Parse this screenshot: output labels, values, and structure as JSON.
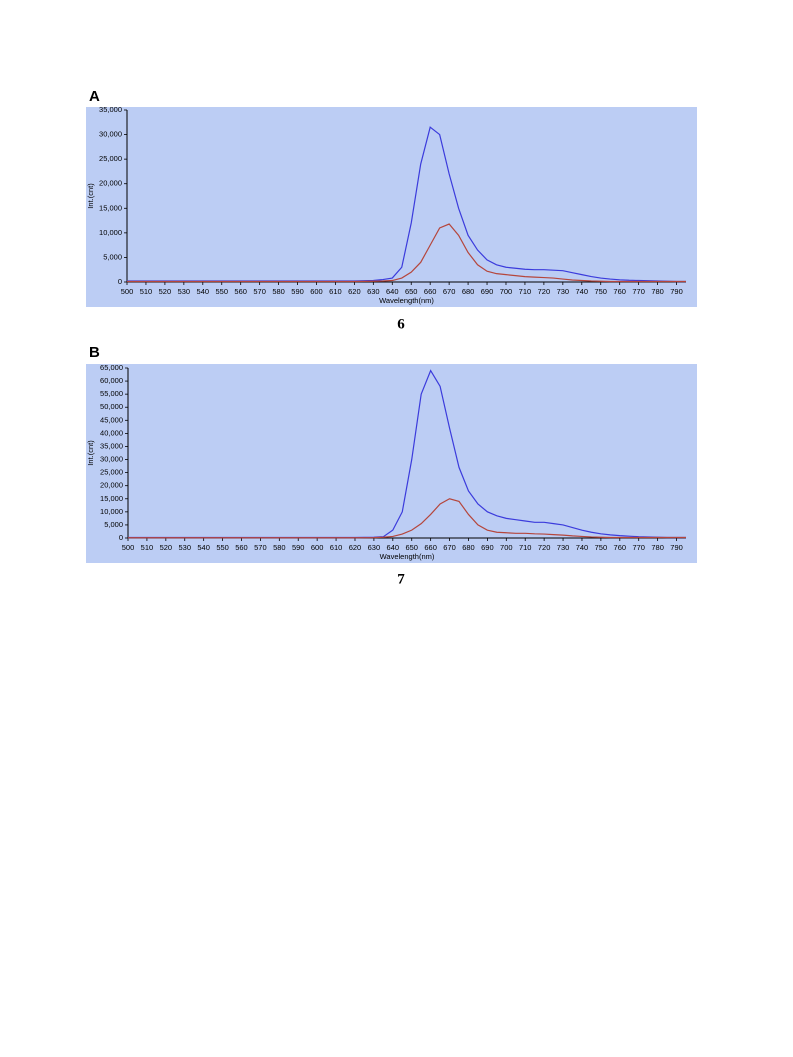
{
  "chart_data": [
    {
      "type": "line",
      "panel": "A",
      "caption": "6",
      "x_label": "Wavelength(nm)",
      "y_label": "Int.(cnt)",
      "x": [
        500,
        510,
        520,
        530,
        540,
        550,
        560,
        570,
        580,
        590,
        600,
        610,
        620,
        630,
        635,
        640,
        645,
        650,
        655,
        660,
        665,
        670,
        675,
        680,
        685,
        690,
        695,
        700,
        705,
        710,
        715,
        720,
        725,
        730,
        735,
        740,
        745,
        750,
        755,
        760,
        765,
        770,
        775,
        780,
        785,
        790,
        795
      ],
      "series": [
        {
          "color": "#3b3bdc",
          "values": [
            200,
            200,
            200,
            200,
            200,
            200,
            200,
            200,
            200,
            200,
            200,
            200,
            200,
            300,
            500,
            800,
            3000,
            12000,
            24000,
            31500,
            30000,
            22000,
            15000,
            9500,
            6500,
            4500,
            3500,
            3000,
            2800,
            2600,
            2500,
            2500,
            2400,
            2300,
            1900,
            1500,
            1100,
            800,
            600,
            450,
            350,
            300,
            250,
            200,
            150,
            100,
            100
          ]
        },
        {
          "color": "#b5463c",
          "values": [
            100,
            100,
            100,
            100,
            100,
            100,
            100,
            100,
            100,
            100,
            100,
            100,
            100,
            150,
            200,
            300,
            800,
            2000,
            4000,
            7500,
            11000,
            11800,
            9500,
            6000,
            3500,
            2200,
            1700,
            1500,
            1300,
            1100,
            1000,
            900,
            800,
            600,
            400,
            300,
            200,
            150,
            100,
            100,
            100,
            100,
            100,
            100,
            100,
            100,
            100
          ]
        }
      ],
      "xlim": [
        500,
        795
      ],
      "xticks": [
        500,
        510,
        520,
        530,
        540,
        550,
        560,
        570,
        580,
        590,
        600,
        610,
        620,
        630,
        640,
        650,
        660,
        670,
        680,
        690,
        700,
        710,
        720,
        730,
        740,
        750,
        760,
        770,
        780,
        790
      ],
      "ylim": [
        0,
        35000
      ],
      "yticks": [
        0,
        {
          "value": 5000,
          "label": "5,000"
        },
        {
          "value": 10000,
          "label": "10,000"
        },
        {
          "value": 15000,
          "label": "15,000"
        },
        {
          "value": 20000,
          "label": "20,000"
        },
        {
          "value": 25000,
          "label": "25,000"
        },
        {
          "value": 30000,
          "label": "30,000"
        },
        {
          "value": 35000,
          "label": "35,000"
        }
      ],
      "background": "#bccdf4"
    },
    {
      "type": "line",
      "panel": "B",
      "caption": "7",
      "x_label": "Wavelength(nm)",
      "y_label": "Int.(cnt)",
      "x": [
        500,
        510,
        520,
        530,
        540,
        550,
        560,
        570,
        580,
        590,
        600,
        610,
        620,
        630,
        635,
        640,
        645,
        650,
        655,
        660,
        665,
        670,
        675,
        680,
        685,
        690,
        695,
        700,
        705,
        710,
        715,
        720,
        725,
        730,
        735,
        740,
        745,
        750,
        755,
        760,
        765,
        770,
        775,
        780,
        785,
        790,
        795
      ],
      "series": [
        {
          "color": "#3b3bdc",
          "values": [
            200,
            200,
            200,
            200,
            200,
            200,
            200,
            200,
            200,
            200,
            200,
            200,
            200,
            300,
            500,
            3000,
            10000,
            30000,
            55000,
            64000,
            58000,
            42000,
            27000,
            18000,
            13000,
            10000,
            8500,
            7500,
            7000,
            6500,
            6000,
            6000,
            5500,
            5000,
            4000,
            3000,
            2200,
            1600,
            1200,
            900,
            700,
            500,
            400,
            300,
            200,
            200,
            200
          ]
        },
        {
          "color": "#b5463c",
          "values": [
            100,
            100,
            100,
            100,
            100,
            100,
            100,
            100,
            100,
            100,
            100,
            100,
            100,
            150,
            300,
            600,
            1500,
            3000,
            5500,
            9000,
            13000,
            15000,
            14000,
            9000,
            5000,
            3000,
            2200,
            2000,
            1800,
            1800,
            1600,
            1500,
            1300,
            1100,
            800,
            600,
            400,
            300,
            200,
            200,
            200,
            200,
            200,
            200,
            200,
            200,
            200
          ]
        }
      ],
      "xlim": [
        500,
        795
      ],
      "xticks": [
        500,
        510,
        520,
        530,
        540,
        550,
        560,
        570,
        580,
        590,
        600,
        610,
        620,
        630,
        640,
        650,
        660,
        670,
        680,
        690,
        700,
        710,
        720,
        730,
        740,
        750,
        760,
        770,
        780,
        790
      ],
      "ylim": [
        0,
        65000
      ],
      "yticks": [
        0,
        {
          "value": 5000,
          "label": "5,000"
        },
        {
          "value": 10000,
          "label": "10,000"
        },
        {
          "value": 15000,
          "label": "15,000"
        },
        {
          "value": 20000,
          "label": "20,000"
        },
        {
          "value": 25000,
          "label": "25,000"
        },
        {
          "value": 30000,
          "label": "30,000"
        },
        {
          "value": 35000,
          "label": "35,000"
        },
        {
          "value": 40000,
          "label": "40,000"
        },
        {
          "value": 45000,
          "label": "45,000"
        },
        {
          "value": 50000,
          "label": "50,000"
        },
        {
          "value": 55000,
          "label": "55,000"
        },
        {
          "value": 60000,
          "label": "60,000"
        },
        {
          "value": 65000,
          "label": "65,000"
        }
      ],
      "background": "#bccdf4"
    }
  ]
}
